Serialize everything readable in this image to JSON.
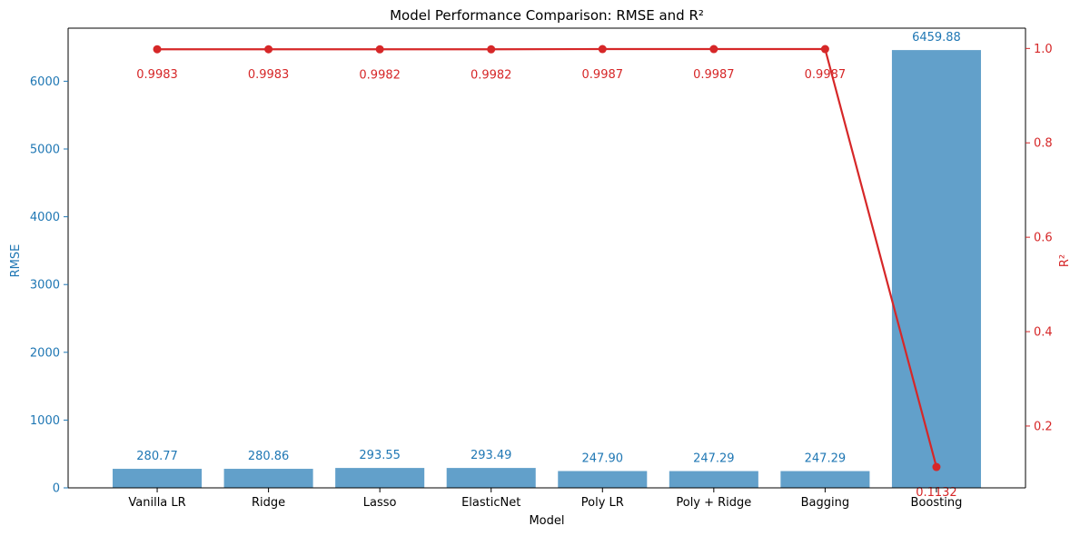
{
  "chart_data": {
    "type": "bar",
    "title": "Model Performance Comparison: RMSE and R²",
    "xlabel": "Model",
    "ylabel": "RMSE",
    "y2label": "R²",
    "categories": [
      "Vanilla LR",
      "Ridge",
      "Lasso",
      "ElasticNet",
      "Poly LR",
      "Poly + Ridge",
      "Bagging",
      "Boosting"
    ],
    "series": [
      {
        "name": "RMSE",
        "type": "bar",
        "axis": "left",
        "values": [
          280.77,
          280.86,
          293.55,
          293.49,
          247.9,
          247.29,
          247.29,
          6459.88
        ],
        "labels": [
          "280.77",
          "280.86",
          "293.55",
          "293.49",
          "247.90",
          "247.29",
          "247.29",
          "6459.88"
        ]
      },
      {
        "name": "R²",
        "type": "line",
        "axis": "right",
        "values": [
          0.9983,
          0.9983,
          0.9982,
          0.9982,
          0.9987,
          0.9987,
          0.9987,
          0.1132
        ],
        "labels": [
          "0.9983",
          "0.9983",
          "0.9982",
          "0.9982",
          "0.9987",
          "0.9987",
          "0.9987",
          "0.1132"
        ]
      }
    ],
    "ylim": [
      0,
      6783
    ],
    "yticks": [
      0,
      1000,
      2000,
      3000,
      4000,
      5000,
      6000
    ],
    "y2lim": [
      0.069,
      1.043
    ],
    "y2ticks": [
      0.2,
      0.4,
      0.6,
      0.8,
      1.0
    ],
    "grid": false,
    "colors": {
      "bar": "#62a0ca",
      "bar_label": "#1f77b4",
      "line": "#d62728",
      "axis": "#000000"
    }
  }
}
